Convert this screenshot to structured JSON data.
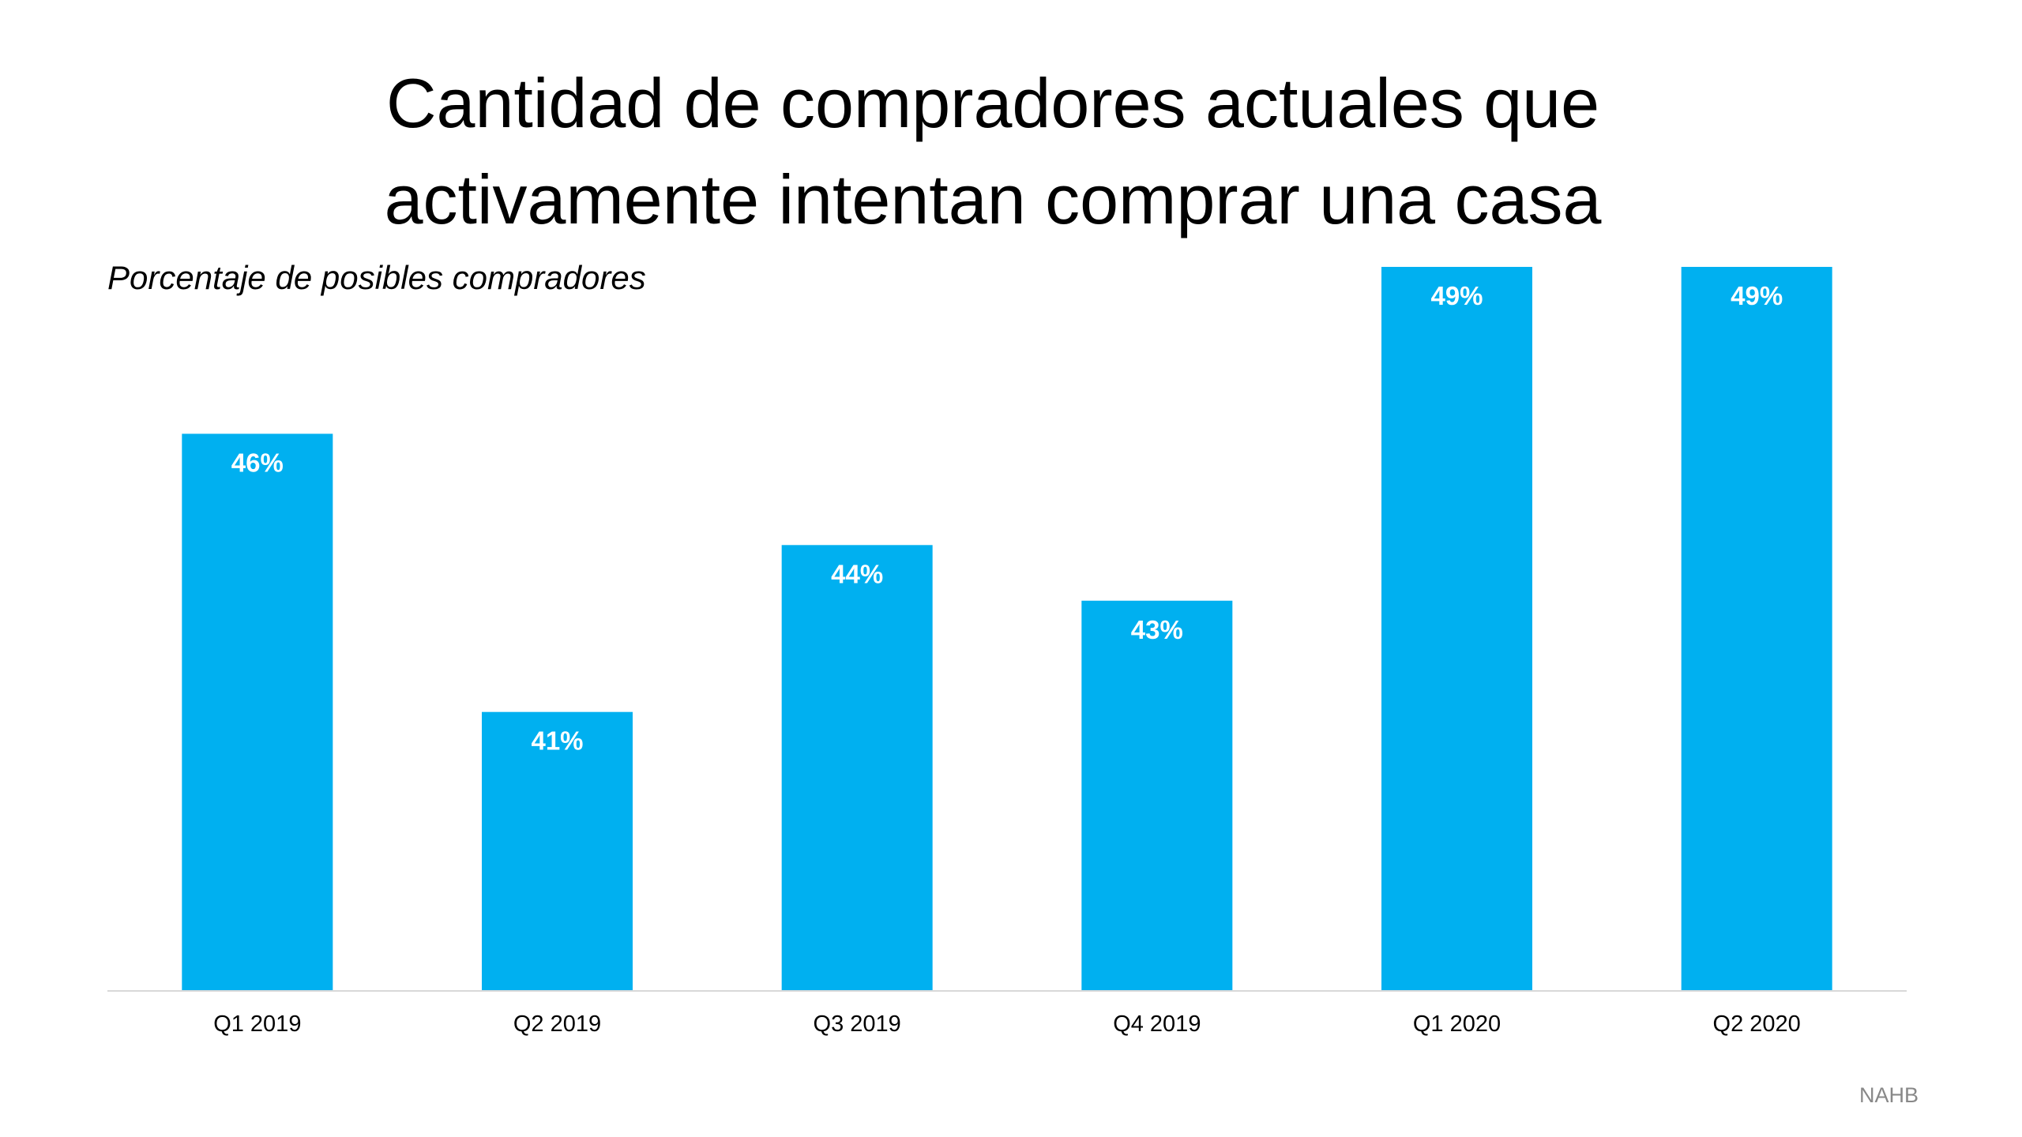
{
  "chart_data": {
    "type": "bar",
    "title": [
      "Cantidad de compradores actuales que",
      "activamente intentan comprar una casa"
    ],
    "subtitle": "Porcentaje de posibles compradores",
    "categories": [
      "Q1 2019",
      "Q2 2019",
      "Q3 2019",
      "Q4 2019",
      "Q1 2020",
      "Q2 2020"
    ],
    "values": [
      46,
      41,
      44,
      43,
      49,
      49
    ],
    "data_labels": [
      "46%",
      "41%",
      "44%",
      "43%",
      "49%",
      "49%"
    ],
    "ylim": [
      36,
      49
    ],
    "grid": false,
    "legend": "none",
    "bar_color": "#00B0F0",
    "source": "NAHB"
  }
}
